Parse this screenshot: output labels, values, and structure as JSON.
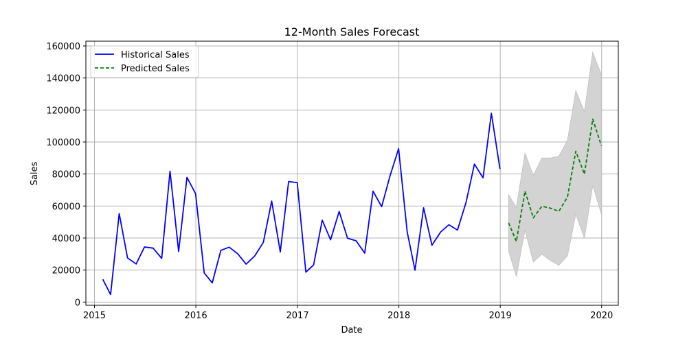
{
  "chart_data": {
    "type": "line",
    "title": "12-Month Sales Forecast",
    "xlabel": "Date",
    "ylabel": "Sales",
    "xlim": [
      "2014-12-01",
      "2020-03-01"
    ],
    "ylim": [
      -2000,
      163000
    ],
    "x_ticks": [
      "2015",
      "2016",
      "2017",
      "2018",
      "2019",
      "2020"
    ],
    "y_ticks": [
      "0",
      "20000",
      "40000",
      "60000",
      "80000",
      "100000",
      "120000",
      "140000",
      "160000"
    ],
    "grid": true,
    "legend_position": "upper-left",
    "series": [
      {
        "name": "Historical Sales",
        "style": "solid",
        "color": "#0000ff",
        "x": [
          "2015-01-31",
          "2015-02-28",
          "2015-03-31",
          "2015-04-30",
          "2015-05-31",
          "2015-06-30",
          "2015-07-31",
          "2015-08-31",
          "2015-09-30",
          "2015-10-31",
          "2015-11-30",
          "2015-12-31",
          "2016-01-31",
          "2016-02-29",
          "2016-03-31",
          "2016-04-30",
          "2016-05-31",
          "2016-06-30",
          "2016-07-31",
          "2016-08-31",
          "2016-09-30",
          "2016-10-31",
          "2016-11-30",
          "2016-12-31",
          "2017-01-31",
          "2017-02-28",
          "2017-03-31",
          "2017-04-30",
          "2017-05-31",
          "2017-06-30",
          "2017-07-31",
          "2017-08-31",
          "2017-09-30",
          "2017-10-31",
          "2017-11-30",
          "2017-12-31",
          "2018-01-31",
          "2018-02-28",
          "2018-03-31",
          "2018-04-30",
          "2018-05-31",
          "2018-06-30",
          "2018-07-31",
          "2018-08-31",
          "2018-09-30",
          "2018-10-31",
          "2018-11-30",
          "2018-12-31"
        ],
        "values": [
          14200,
          4700,
          55300,
          27600,
          23800,
          34400,
          33700,
          27300,
          81800,
          31600,
          77900,
          67700,
          18200,
          12000,
          32300,
          34300,
          30100,
          23700,
          28800,
          37300,
          63100,
          31300,
          75300,
          74600,
          18700,
          23200,
          51200,
          38900,
          56600,
          39900,
          38300,
          30600,
          69300,
          59600,
          78800,
          95800,
          43700,
          19900,
          58900,
          35500,
          43700,
          48300,
          45000,
          62400,
          86200,
          77600,
          118000,
          83100
        ]
      },
      {
        "name": "Predicted Sales",
        "style": "dashed",
        "color": "#008000",
        "x": [
          "2019-01-31",
          "2019-02-28",
          "2019-03-31",
          "2019-04-30",
          "2019-05-31",
          "2019-06-30",
          "2019-07-31",
          "2019-08-31",
          "2019-09-30",
          "2019-10-31",
          "2019-11-30",
          "2019-12-31"
        ],
        "values": [
          49500,
          37900,
          69300,
          52600,
          59900,
          58700,
          56700,
          65600,
          94200,
          79900,
          114300,
          97700
        ]
      }
    ],
    "confidence_band": {
      "color": "#d3d3d3",
      "x": [
        "2019-01-31",
        "2019-02-28",
        "2019-03-31",
        "2019-04-30",
        "2019-05-31",
        "2019-06-30",
        "2019-07-31",
        "2019-08-31",
        "2019-09-30",
        "2019-10-31",
        "2019-11-30",
        "2019-12-31"
      ],
      "lower": [
        32000,
        16000,
        45000,
        25000,
        30000,
        26000,
        23000,
        29000,
        55000,
        40000,
        73000,
        55000
      ],
      "upper": [
        67000,
        59000,
        93000,
        79000,
        90000,
        90000,
        91000,
        101000,
        132000,
        119000,
        156000,
        142000
      ]
    }
  }
}
